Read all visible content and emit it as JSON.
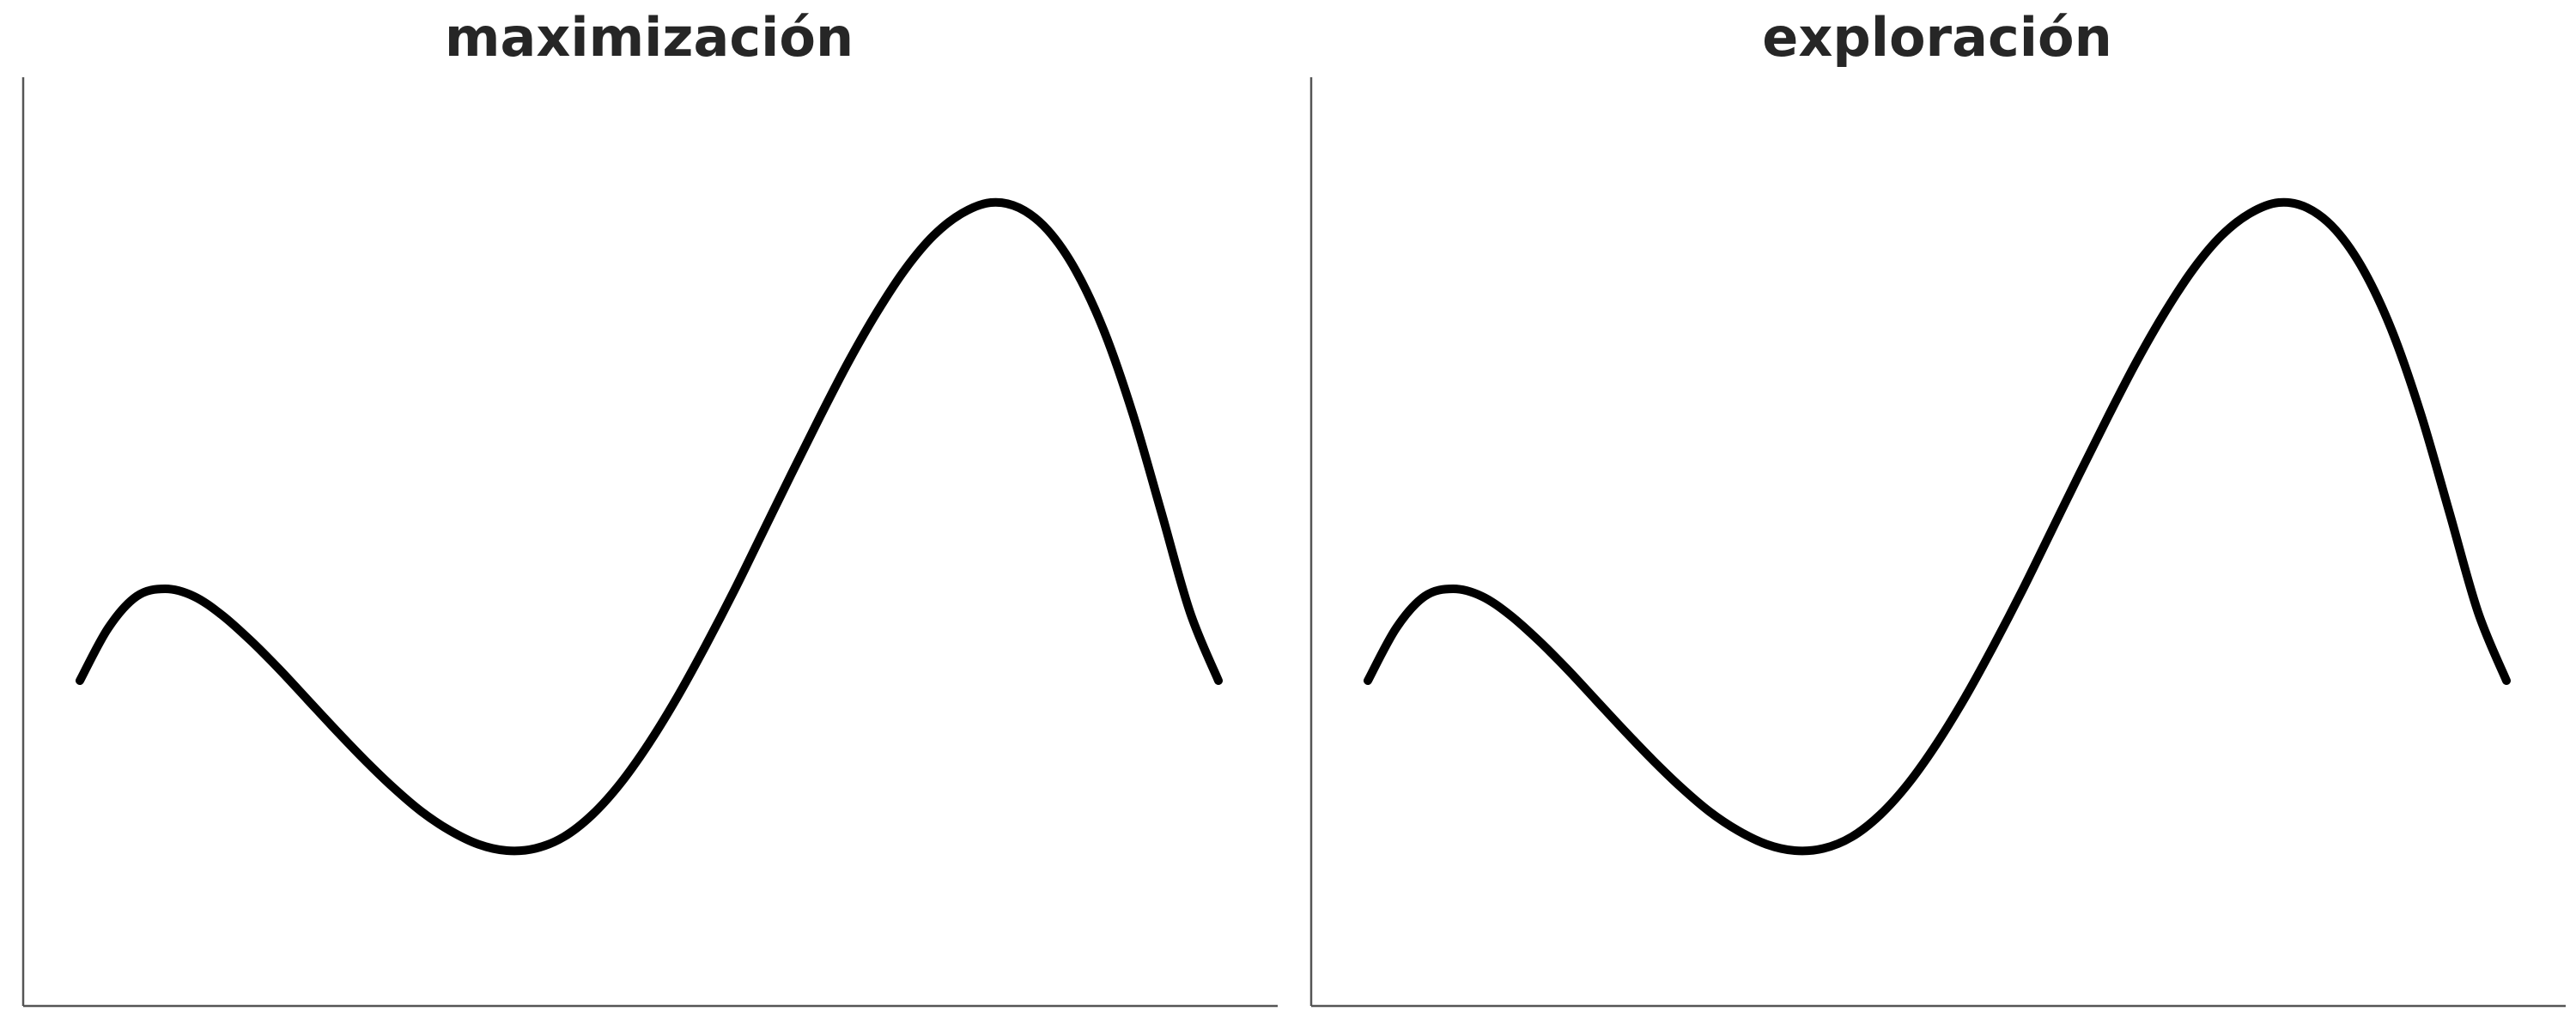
{
  "chart_data": [
    {
      "type": "line",
      "title": "maximización",
      "xlabel": "",
      "ylabel": "",
      "grid": false,
      "xlim": [
        0,
        1
      ],
      "ylim": [
        0,
        1
      ],
      "series": [
        {
          "color": "#000000",
          "x": [
            0.0,
            0.025,
            0.05,
            0.075,
            0.1,
            0.125,
            0.15,
            0.175,
            0.2,
            0.225,
            0.25,
            0.275,
            0.3,
            0.325,
            0.35,
            0.375,
            0.4,
            0.425,
            0.45,
            0.475,
            0.5,
            0.525,
            0.55,
            0.575,
            0.6,
            0.625,
            0.65,
            0.675,
            0.7,
            0.725,
            0.75,
            0.775,
            0.8,
            0.825,
            0.85,
            0.875,
            0.9,
            0.925,
            0.95,
            0.975,
            1.0
          ],
          "y": [
            0.335,
            0.385,
            0.415,
            0.422,
            0.415,
            0.397,
            0.373,
            0.346,
            0.317,
            0.288,
            0.26,
            0.234,
            0.211,
            0.193,
            0.18,
            0.174,
            0.176,
            0.187,
            0.208,
            0.238,
            0.276,
            0.32,
            0.369,
            0.421,
            0.476,
            0.531,
            0.585,
            0.637,
            0.684,
            0.725,
            0.757,
            0.778,
            0.788,
            0.783,
            0.762,
            0.723,
            0.665,
            0.587,
            0.494,
            0.4,
            0.335
          ]
        }
      ]
    },
    {
      "type": "line",
      "title": "exploración",
      "xlabel": "",
      "ylabel": "",
      "grid": false,
      "xlim": [
        0,
        1
      ],
      "ylim": [
        0,
        1
      ],
      "series": [
        {
          "color": "#000000",
          "x": [
            0.0,
            0.025,
            0.05,
            0.075,
            0.1,
            0.125,
            0.15,
            0.175,
            0.2,
            0.225,
            0.25,
            0.275,
            0.3,
            0.325,
            0.35,
            0.375,
            0.4,
            0.425,
            0.45,
            0.475,
            0.5,
            0.525,
            0.55,
            0.575,
            0.6,
            0.625,
            0.65,
            0.675,
            0.7,
            0.725,
            0.75,
            0.775,
            0.8,
            0.825,
            0.85,
            0.875,
            0.9,
            0.925,
            0.95,
            0.975,
            1.0
          ],
          "y": [
            0.335,
            0.385,
            0.415,
            0.422,
            0.415,
            0.397,
            0.373,
            0.346,
            0.317,
            0.288,
            0.26,
            0.234,
            0.211,
            0.193,
            0.18,
            0.174,
            0.176,
            0.187,
            0.208,
            0.238,
            0.276,
            0.32,
            0.369,
            0.421,
            0.476,
            0.531,
            0.585,
            0.637,
            0.684,
            0.725,
            0.757,
            0.778,
            0.788,
            0.783,
            0.762,
            0.723,
            0.665,
            0.587,
            0.494,
            0.4,
            0.335
          ]
        }
      ]
    }
  ]
}
